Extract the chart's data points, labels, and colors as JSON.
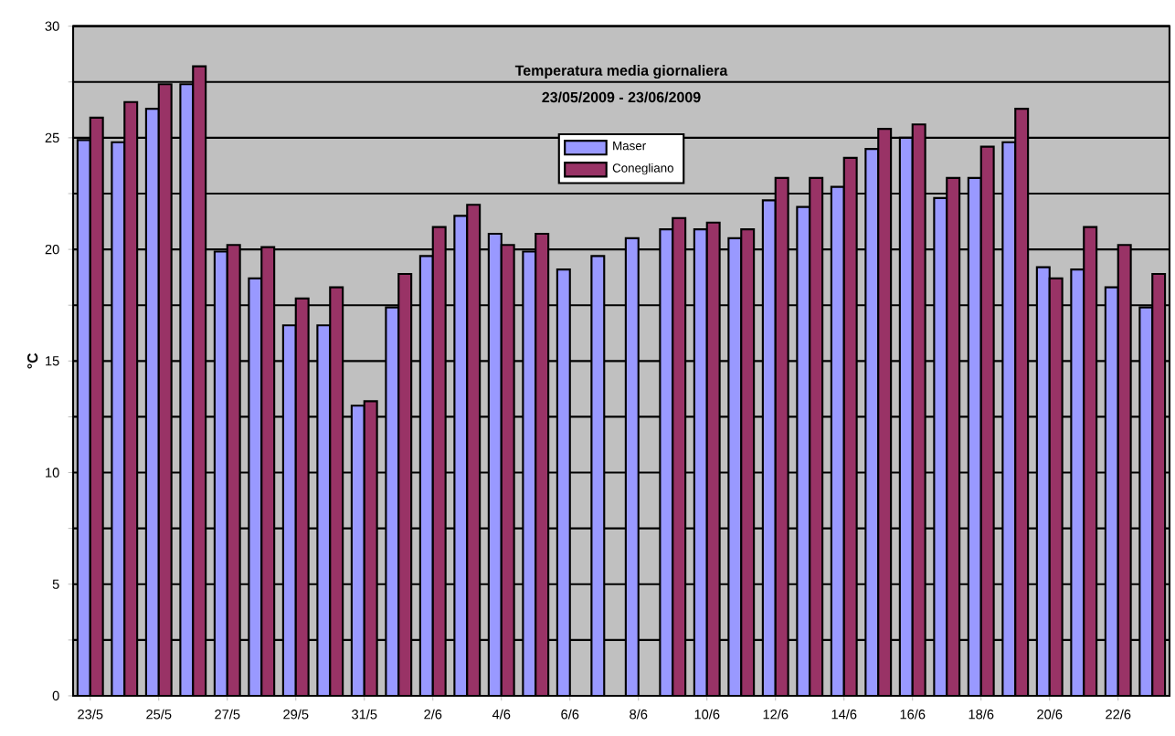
{
  "chart_data": {
    "type": "bar",
    "title": "Temperatura media giornaliera",
    "subtitle": "23/05/2009 - 23/06/2009",
    "ylabel": "°C",
    "categories": [
      "23/5",
      null,
      "25/5",
      null,
      "27/5",
      null,
      "29/5",
      null,
      "31/5",
      null,
      "2/6",
      null,
      "4/6",
      null,
      "6/6",
      null,
      "8/6",
      null,
      "10/6",
      null,
      "12/6",
      null,
      "14/6",
      null,
      "16/6",
      null,
      "18/6",
      null,
      "20/6",
      null,
      "22/6",
      null
    ],
    "series": [
      {
        "name": "Maser",
        "color": "#9999ff",
        "values": [
          24.9,
          24.8,
          26.3,
          27.4,
          19.9,
          18.7,
          16.6,
          16.6,
          13.0,
          17.4,
          19.7,
          21.5,
          20.7,
          19.9,
          19.1,
          19.7,
          20.5,
          20.9,
          20.9,
          20.5,
          22.2,
          21.9,
          22.8,
          24.5,
          25.0,
          22.3,
          23.2,
          24.8,
          19.2,
          19.1,
          18.3,
          17.4
        ]
      },
      {
        "name": "Conegliano",
        "color": "#993366",
        "values": [
          25.9,
          26.6,
          27.4,
          28.2,
          20.2,
          20.1,
          17.8,
          18.3,
          13.2,
          18.9,
          21.0,
          22.0,
          20.2,
          20.7,
          null,
          null,
          null,
          21.4,
          21.2,
          20.9,
          23.2,
          23.2,
          24.1,
          25.4,
          25.6,
          23.2,
          24.6,
          26.3,
          18.7,
          21.0,
          20.2,
          18.9
        ]
      }
    ],
    "ylim": [
      0,
      30
    ],
    "yticks": [
      0,
      {
        "value": 2.5,
        "label": null
      },
      5,
      {
        "value": 7.5,
        "label": null
      },
      10,
      {
        "value": 12.5,
        "label": null
      },
      15,
      {
        "value": 17.5,
        "label": null
      },
      20,
      {
        "value": 22.5,
        "label": null
      },
      25,
      {
        "value": 27.5,
        "label": null
      },
      30
    ],
    "grid": "y",
    "legend": "top"
  }
}
